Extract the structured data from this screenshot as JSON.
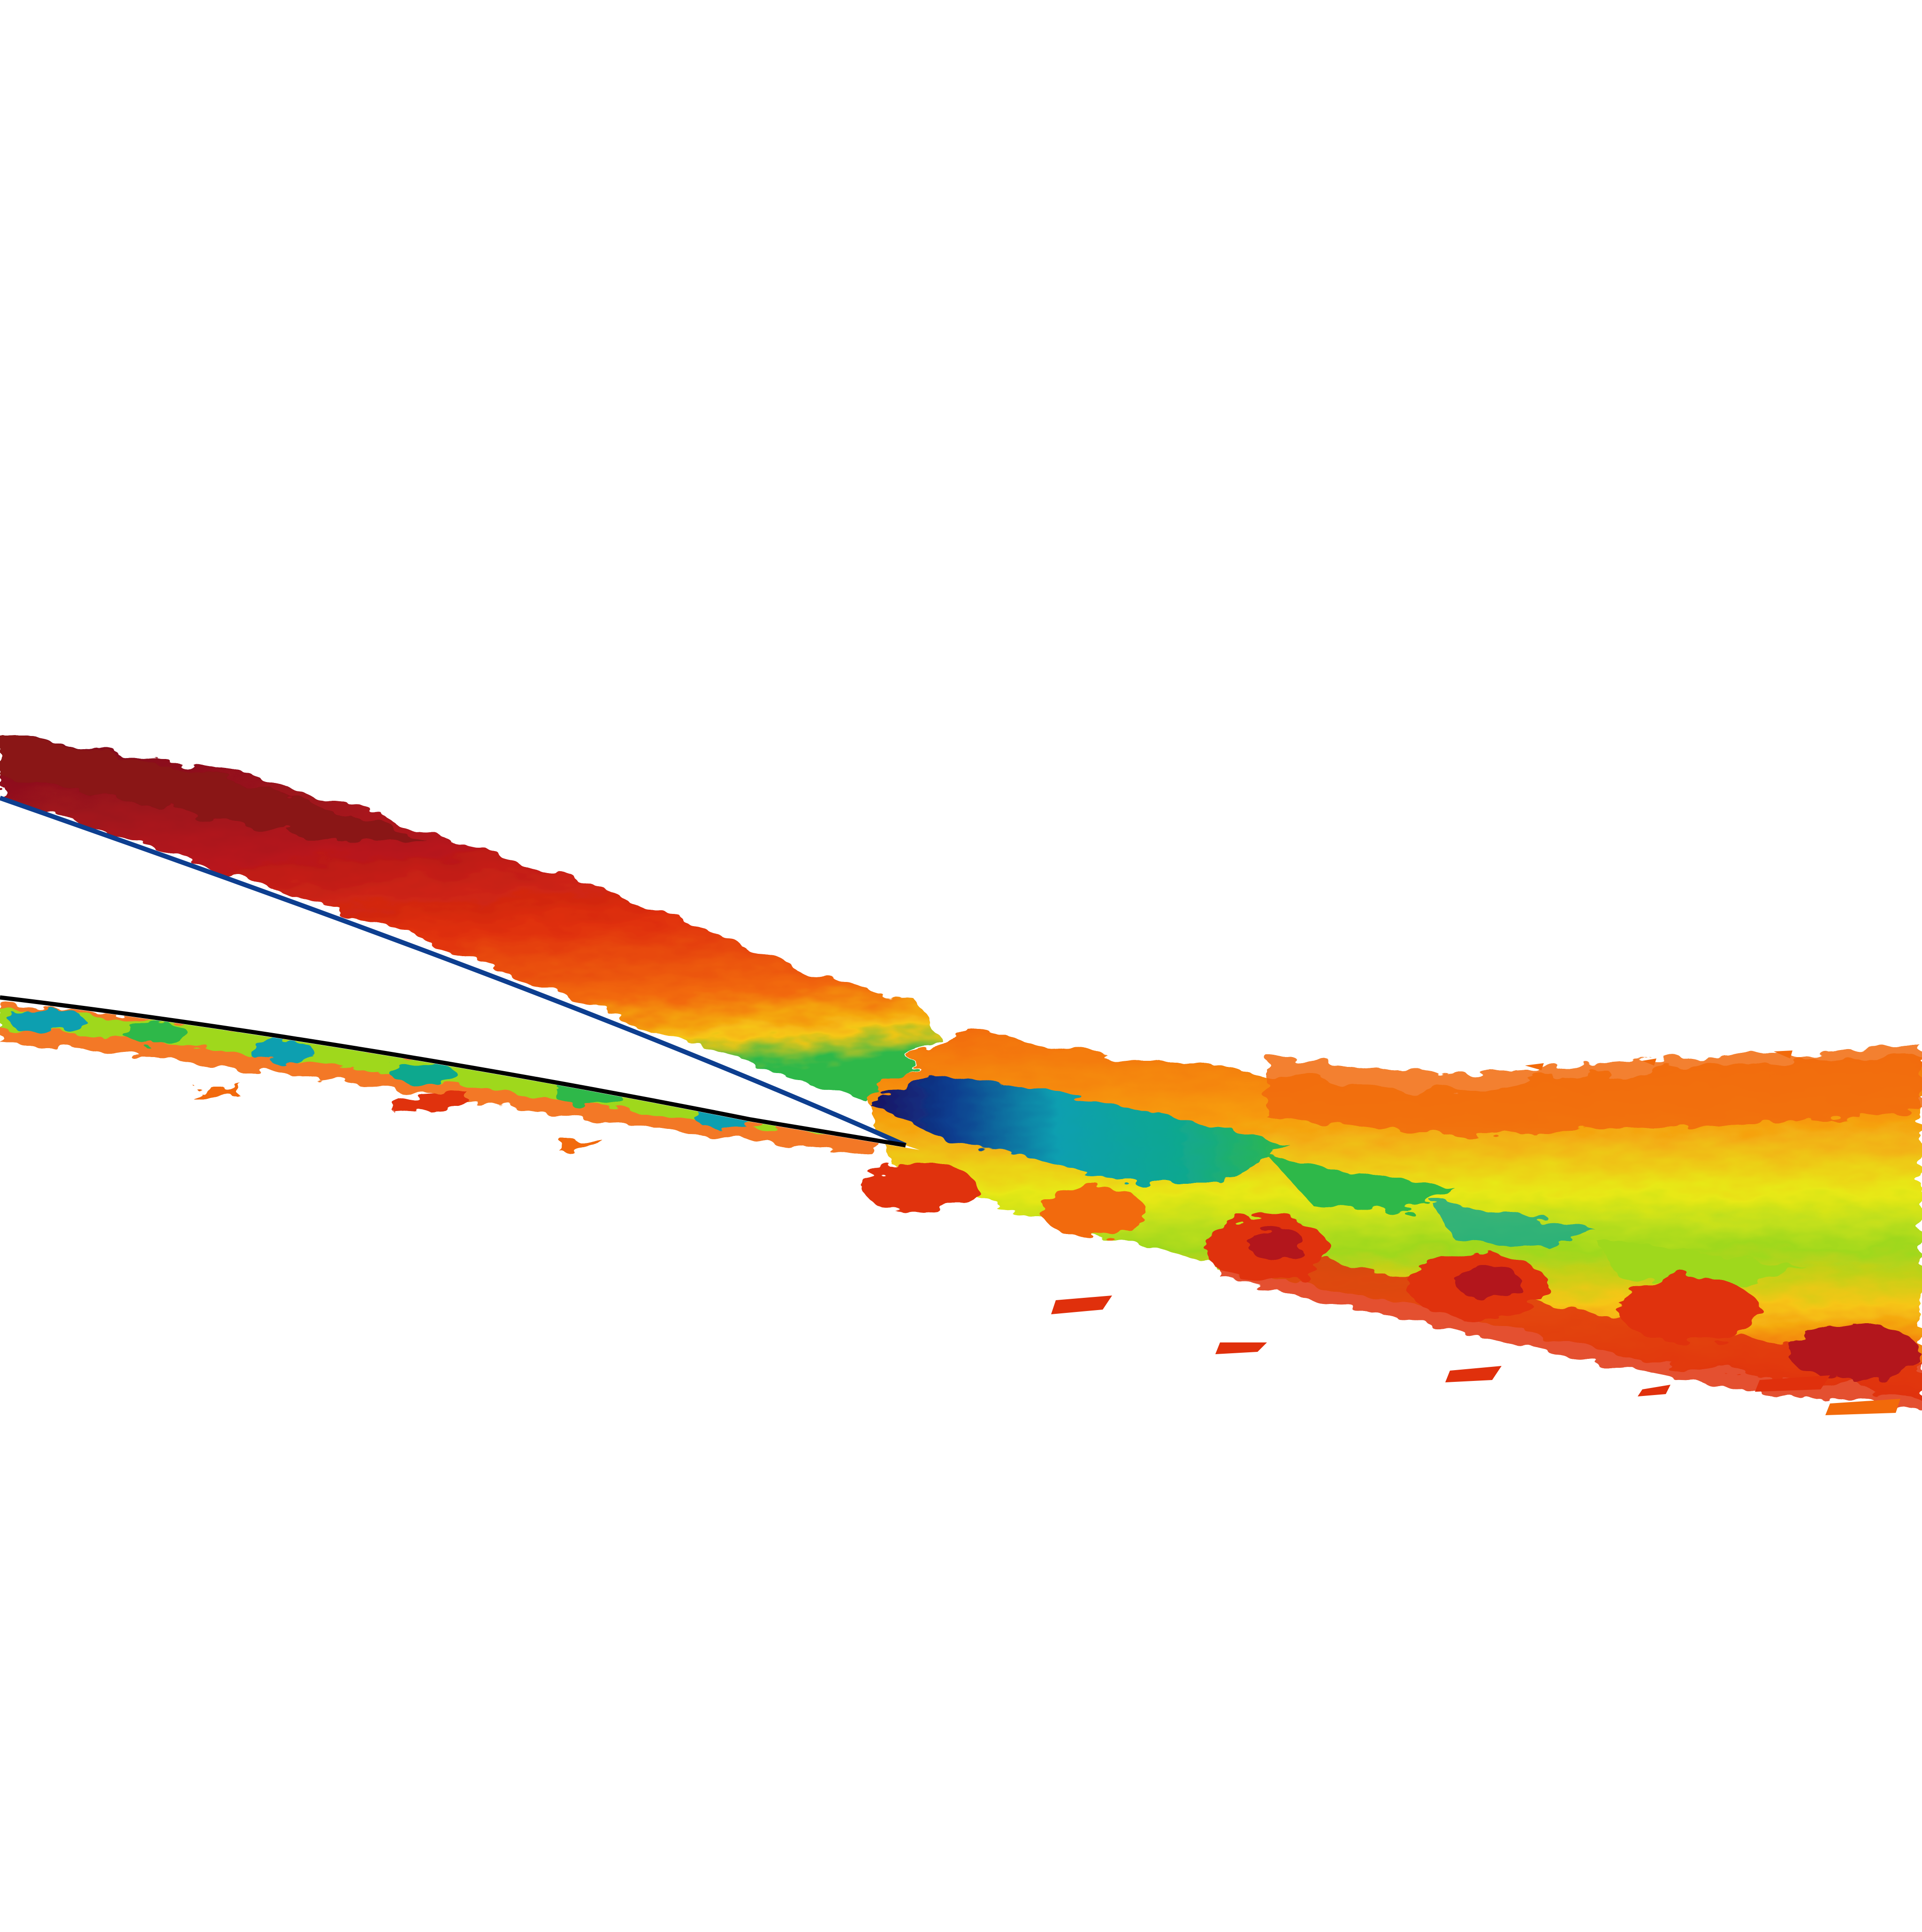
{
  "scene": {
    "subject": "airfoil-trailing-edge-wake",
    "background_color": "#ffffff",
    "airfoil_outline_color": "#000000",
    "colormap": [
      "#7a0f1a",
      "#b3141c",
      "#e0300c",
      "#f26a0a",
      "#f79a10",
      "#f6c614",
      "#e8e818",
      "#9fd81c",
      "#2fb84a",
      "#11a88e",
      "#0a9fb0",
      "#0d3e8f",
      "#1a1060"
    ]
  }
}
